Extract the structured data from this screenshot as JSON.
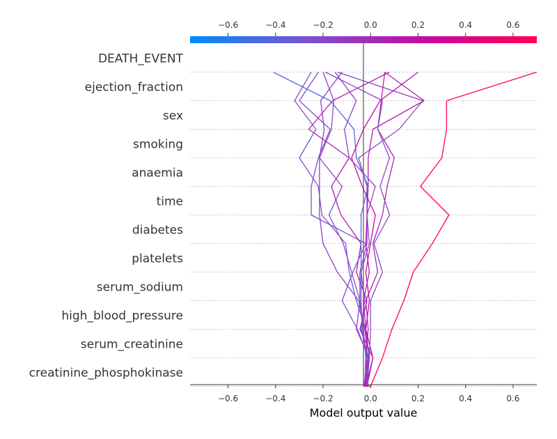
{
  "chart_data": {
    "type": "line",
    "title": "",
    "xlabel": "Model output value",
    "ylabel": "",
    "xlim": [
      -0.76,
      0.7
    ],
    "xticks": [
      -0.6,
      -0.4,
      -0.2,
      0.0,
      0.2,
      0.4,
      0.6
    ],
    "xtick_labels": [
      "−0.6",
      "−0.4",
      "−0.2",
      "0.0",
      "0.2",
      "0.4",
      "0.6"
    ],
    "base_value": -0.03,
    "features": [
      "DEATH_EVENT",
      "ejection_fraction",
      "sex",
      "smoking",
      "anaemia",
      "time",
      "diabetes",
      "platelets",
      "serum_sodium",
      "high_blood_pressure",
      "serum_creatinine",
      "creatinine_phosphokinase"
    ],
    "colorbar": {
      "colors": [
        "#008bfb",
        "#7a52d0",
        "#c30ca3",
        "#ff0052"
      ]
    },
    "series": [
      {
        "values": [
          -0.03,
          -0.025,
          -0.02,
          -0.03,
          -0.045,
          -0.08,
          -0.115,
          -0.175,
          -0.12,
          -0.215,
          -0.165,
          -0.155,
          -0.2
        ]
      },
      {
        "values": [
          -0.03,
          -0.03,
          -0.005,
          -0.025,
          -0.05,
          -0.14,
          -0.2,
          -0.215,
          -0.215,
          -0.215,
          -0.195,
          -0.21,
          -0.12
        ]
      },
      {
        "values": [
          -0.03,
          -0.015,
          0.01,
          -0.045,
          -0.015,
          -0.06,
          -0.04,
          -0.125,
          -0.165,
          -0.09,
          -0.26,
          -0.16,
          0.08
        ]
      },
      {
        "values": [
          -0.03,
          -0.02,
          -0.005,
          -0.02,
          -0.06,
          -0.09,
          -0.105,
          -0.205,
          -0.22,
          -0.3,
          -0.23,
          -0.32,
          -0.25
        ]
      },
      {
        "values": [
          -0.03,
          -0.02,
          -0.01,
          -0.055,
          -0.12,
          -0.075,
          -0.02,
          -0.25,
          -0.25,
          -0.22,
          -0.17,
          -0.3,
          -0.22
        ]
      },
      {
        "values": [
          -0.03,
          -0.03,
          -0.005,
          -0.06,
          -0.045,
          -0.045,
          -0.015,
          -0.015,
          -0.015,
          -0.05,
          0.12,
          0.22,
          -0.14
        ]
      },
      {
        "values": [
          -0.03,
          -0.02,
          -0.015,
          -0.02,
          -0.03,
          -0.005,
          -0.02,
          -0.015,
          -0.01,
          -0.01,
          0.01,
          0.225,
          0.06
        ]
      },
      {
        "values": [
          -0.03,
          -0.015,
          -0.02,
          -0.01,
          -0.02,
          0.03,
          0.01,
          0.05,
          0.07,
          0.1,
          0.03,
          0.045,
          0.06
        ]
      },
      {
        "values": [
          -0.03,
          -0.01,
          -0.015,
          -0.035,
          -0.04,
          -0.04,
          -0.04,
          -0.04,
          -0.01,
          -0.06,
          -0.07,
          -0.17,
          -0.41
        ]
      },
      {
        "values": [
          -0.03,
          -0.02,
          0.01,
          -0.02,
          -0.005,
          -0.02,
          0.0,
          0.02,
          -0.035,
          -0.08,
          -0.03,
          0.04,
          0.2
        ]
      },
      {
        "values": [
          -0.03,
          -0.015,
          -0.005,
          0.0,
          0.0,
          0.05,
          0.015,
          0.08,
          0.04,
          0.08,
          0.03,
          0.05,
          -0.19
        ]
      },
      {
        "values": [
          -0.03,
          -0.025,
          -0.01,
          -0.04,
          -0.025,
          -0.04,
          -0.005,
          -0.015,
          0.02,
          -0.09,
          -0.11,
          -0.06,
          -0.15
        ]
      },
      {
        "values": [
          -0.03,
          0.0,
          0.05,
          0.09,
          0.14,
          0.18,
          0.26,
          0.33,
          0.21,
          0.3,
          0.32,
          0.32,
          0.7
        ]
      }
    ]
  }
}
